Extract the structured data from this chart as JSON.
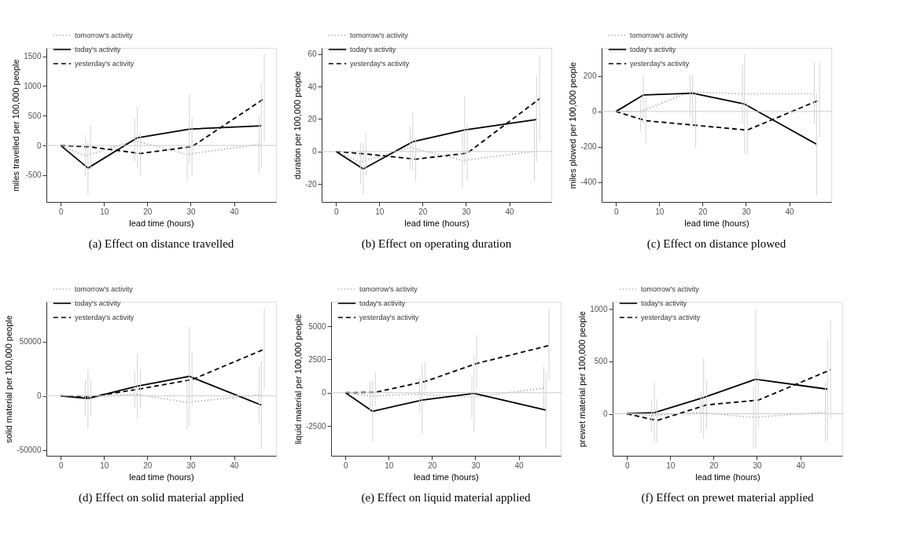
{
  "chart_data": [
    {
      "type": "line",
      "title": "(a)  Effect on distance travelled",
      "xlabel": "lead time (hours)",
      "ylabel": "miles travelled per 100,000 people",
      "xlim": [
        -3.3,
        49.7
      ],
      "ylim": [
        -950,
        1640
      ],
      "xticks": [
        0,
        10,
        20,
        30,
        40
      ],
      "yticks": [
        -500,
        0,
        500,
        1000,
        1500
      ],
      "grid": false,
      "legend": "top left",
      "ref_lines": [
        {
          "axis": "y",
          "value": 0,
          "color": "#cccccc"
        }
      ],
      "series": [
        {
          "name": "tomorrow's activity",
          "color": "#999999",
          "line_style": "dotted",
          "x": [
            0,
            5.7,
            17.1,
            29.2,
            45.8
          ],
          "values": [
            0,
            -175,
            80,
            -150,
            20
          ],
          "errors": [
            null,
            [
              -525,
              170
            ],
            [
              -270,
              455
            ],
            [
              -610,
              10
            ],
            [
              -470,
              500
            ]
          ]
        },
        {
          "name": "today's activity",
          "color": "#000000",
          "line_style": "solid",
          "x": [
            0,
            6.3,
            17.7,
            29.7,
            46.3
          ],
          "values": [
            0,
            -380,
            130,
            275,
            330
          ],
          "errors": [
            null,
            [
              -830,
              70
            ],
            [
              -385,
              650
            ],
            [
              -310,
              860
            ],
            [
              -380,
              1060
            ]
          ]
        },
        {
          "name": "yesterday's activity",
          "color": "#000000",
          "line_style": "dashed",
          "x": [
            0,
            6.9,
            18.4,
            30.3,
            47
          ],
          "values": [
            0,
            -25,
            -135,
            -20,
            790
          ],
          "errors": [
            null,
            [
              -405,
              345
            ],
            [
              -515,
              225
            ],
            [
              -505,
              485
            ],
            [
              60,
              1530
            ]
          ]
        }
      ]
    },
    {
      "type": "line",
      "title": "(b)  Effect on operating duration",
      "xlabel": "lead time (hours)",
      "ylabel": "duration per 100,000 people",
      "xlim": [
        -3.3,
        49.7
      ],
      "ylim": [
        -31,
        63.7
      ],
      "xticks": [
        0,
        10,
        20,
        30,
        40
      ],
      "yticks": [
        -20,
        0,
        20,
        40,
        60
      ],
      "grid": false,
      "legend": "top left",
      "ref_lines": [
        {
          "axis": "y",
          "value": 0,
          "color": "#cccccc"
        }
      ],
      "series": [
        {
          "name": "tomorrow's activity",
          "color": "#999999",
          "line_style": "dotted",
          "x": [
            0,
            5.7,
            17.1,
            29.2,
            45.8
          ],
          "values": [
            0,
            -6.5,
            2.5,
            -5.5,
            0
          ],
          "errors": [
            null,
            [
              -20,
              5.3
            ],
            [
              -10.9,
              15.7
            ],
            [
              -22.5,
              11.7
            ],
            [
              -18.3,
              17.7
            ]
          ]
        },
        {
          "name": "today's activity",
          "color": "#000000",
          "line_style": "solid",
          "x": [
            0,
            6.3,
            17.7,
            29.7,
            46.3
          ],
          "values": [
            0,
            -10.7,
            6,
            13.3,
            19.7
          ],
          "errors": [
            null,
            [
              -26.7,
              5.1
            ],
            [
              -11.6,
              23.5
            ],
            [
              -8.3,
              34.1
            ],
            [
              -6.7,
              46.4
            ]
          ]
        },
        {
          "name": "yesterday's activity",
          "color": "#000000",
          "line_style": "dashed",
          "x": [
            0,
            6.9,
            18.4,
            30.3,
            47
          ],
          "values": [
            0,
            -1.5,
            -4.7,
            -1,
            32.5
          ],
          "errors": [
            null,
            [
              -14.9,
              11.7
            ],
            [
              -17.9,
              8.4
            ],
            [
              -17.9,
              16.8
            ],
            [
              6,
              59.1
            ]
          ]
        }
      ]
    },
    {
      "type": "line",
      "title": "(c)  Effect on distance plowed",
      "xlabel": "lead time (hours)",
      "ylabel": "miles plowed per 100,000 people",
      "xlim": [
        -3.3,
        49.7
      ],
      "ylim": [
        -511,
        359
      ],
      "xticks": [
        0,
        10,
        20,
        30,
        40
      ],
      "yticks": [
        -400,
        -200,
        0,
        200
      ],
      "grid": false,
      "legend": "top left",
      "ref_lines": [
        {
          "axis": "y",
          "value": 0,
          "color": "#cccccc"
        }
      ],
      "series": [
        {
          "name": "tomorrow's activity",
          "color": "#999999",
          "line_style": "dotted",
          "x": [
            0,
            5.7,
            17.1,
            29.2,
            45.8
          ],
          "values": [
            0,
            0,
            110,
            100,
            100
          ],
          "errors": [
            null,
            [
              -114,
              63
            ],
            [
              -32,
              205
            ],
            [
              -69,
              269
            ],
            [
              -73,
              277
            ]
          ]
        },
        {
          "name": "today's activity",
          "color": "#000000",
          "line_style": "solid",
          "x": [
            0,
            6.3,
            17.7,
            29.7,
            46.3
          ],
          "values": [
            0,
            93,
            103,
            42,
            -185
          ],
          "errors": [
            null,
            [
              -69,
              207
            ],
            [
              -89,
              207
            ],
            [
              -237,
              322
            ],
            [
              -472,
              98
            ]
          ]
        },
        {
          "name": "yesterday's activity",
          "color": "#000000",
          "line_style": "dashed",
          "x": [
            0,
            6.9,
            18.4,
            30.3,
            47
          ],
          "values": [
            0,
            -52,
            -78,
            -105,
            65
          ],
          "errors": [
            null,
            [
              -180,
              79
            ],
            [
              -202,
              100
            ],
            [
              -249,
              63
            ],
            [
              -143,
              279
            ]
          ]
        }
      ]
    },
    {
      "type": "line",
      "title": "(d)  Effect on solid material applied",
      "xlabel": "lead time (hours)",
      "ylabel": "solid material per 100,000 people",
      "xlim": [
        -3.3,
        49.7
      ],
      "ylim": [
        -55200,
        86700
      ],
      "xticks": [
        0,
        10,
        20,
        30,
        40
      ],
      "yticks": [
        -50000,
        0,
        50000
      ],
      "grid": false,
      "legend": "top left",
      "ref_lines": [
        {
          "axis": "y",
          "value": 0,
          "color": "#cccccc"
        }
      ],
      "series": [
        {
          "name": "tomorrow's activity",
          "color": "#999999",
          "line_style": "dotted",
          "x": [
            0,
            5.7,
            17.1,
            29.2,
            45.8
          ],
          "values": [
            0,
            -1500,
            1500,
            -6000,
            1000
          ],
          "errors": [
            null,
            [
              -18500,
              14700
            ],
            [
              -11500,
              22200
            ],
            [
              -31700,
              15700
            ],
            [
              -25600,
              26800
            ]
          ]
        },
        {
          "name": "today's activity",
          "color": "#000000",
          "line_style": "solid",
          "x": [
            0,
            6.3,
            17.7,
            29.7,
            46.3
          ],
          "values": [
            0,
            -2500,
            9000,
            18000,
            -8500
          ],
          "errors": [
            null,
            [
              -30200,
              24200
            ],
            [
              -21600,
              38900
            ],
            [
              -27600,
              64100
            ],
            [
              -49400,
              31900
            ]
          ]
        },
        {
          "name": "yesterday's activity",
          "color": "#000000",
          "line_style": "dashed",
          "x": [
            0,
            6.9,
            18.4,
            30.3,
            47
          ],
          "values": [
            0,
            -1000,
            6500,
            15000,
            43000
          ],
          "errors": [
            null,
            [
              -18500,
              15700
            ],
            [
              -11500,
              24200
            ],
            [
              -8500,
              40300
            ],
            [
              6000,
              80200
            ]
          ]
        }
      ]
    },
    {
      "type": "line",
      "title": "(e)  Effect on liquid material applied",
      "xlabel": "lead time (hours)",
      "ylabel": "liquid material per 100,000 people",
      "xlim": [
        -3.3,
        49.7
      ],
      "ylim": [
        -4740,
        6840
      ],
      "xticks": [
        0,
        10,
        20,
        30,
        40
      ],
      "yticks": [
        -2500,
        0,
        2500,
        5000
      ],
      "grid": false,
      "legend": "top left",
      "ref_lines": [
        {
          "axis": "y",
          "value": 0,
          "color": "#cccccc"
        }
      ],
      "series": [
        {
          "name": "tomorrow's activity",
          "color": "#999999",
          "line_style": "dotted",
          "x": [
            0,
            5.7,
            17.1,
            29.2,
            45.8
          ],
          "values": [
            0,
            -250,
            -100,
            -350,
            350
          ],
          "errors": [
            null,
            [
              -1500,
              860
            ],
            [
              -1410,
              1250
            ],
            [
              -1990,
              1130
            ],
            [
              -1220,
              1960
            ]
          ]
        },
        {
          "name": "today's activity",
          "color": "#000000",
          "line_style": "solid",
          "x": [
            0,
            6.3,
            17.7,
            29.7,
            46.3
          ],
          "values": [
            0,
            -1400,
            -550,
            -50,
            -1300
          ],
          "errors": [
            null,
            [
              -3680,
              890
            ],
            [
              -3140,
              2090
            ],
            [
              -2980,
              2860
            ],
            [
              -4210,
              1580
            ]
          ]
        },
        {
          "name": "yesterday's activity",
          "color": "#000000",
          "line_style": "dashed",
          "x": [
            0,
            6.9,
            18.4,
            30.3,
            47
          ],
          "values": [
            0,
            30,
            850,
            2200,
            3550
          ],
          "errors": [
            null,
            [
              -1000,
              1500
            ],
            [
              150,
              2240
            ],
            [
              230,
              4310
            ],
            [
              855,
              6320
            ]
          ]
        }
      ]
    },
    {
      "type": "line",
      "title": "(f)  Effect on prewet material applied",
      "xlabel": "lead time (hours)",
      "ylabel": "prewet material per 100,000 people",
      "xlim": [
        -3.3,
        49.7
      ],
      "ylim": [
        -402,
        1071
      ],
      "xticks": [
        0,
        10,
        20,
        30,
        40
      ],
      "yticks": [
        0,
        500,
        1000
      ],
      "grid": false,
      "legend": "top left",
      "ref_lines": [
        {
          "axis": "y",
          "value": 0,
          "color": "#cccccc"
        }
      ],
      "series": [
        {
          "name": "tomorrow's activity",
          "color": "#999999",
          "line_style": "dotted",
          "x": [
            0,
            5.7,
            17.1,
            29.2,
            45.8
          ],
          "values": [
            0,
            -15,
            10,
            -35,
            15
          ],
          "errors": [
            null,
            [
              -167,
              126
            ],
            [
              -184,
              205
            ],
            [
              -335,
              262
            ],
            [
              -268,
              303
            ]
          ]
        },
        {
          "name": "today's activity",
          "color": "#000000",
          "line_style": "solid",
          "x": [
            0,
            6.3,
            17.7,
            29.7,
            46.3
          ],
          "values": [
            0,
            10,
            155,
            330,
            235
          ],
          "errors": [
            null,
            [
              -282,
              297
            ],
            [
              -234,
              533
            ],
            [
              -339,
              1004
            ],
            [
              -251,
              722
            ]
          ]
        },
        {
          "name": "yesterday's activity",
          "color": "#000000",
          "line_style": "dashed",
          "x": [
            0,
            6.9,
            18.4,
            30.3,
            47
          ],
          "values": [
            0,
            -65,
            85,
            130,
            420
          ],
          "errors": [
            null,
            [
              -276,
              136
            ],
            [
              -142,
              314
            ],
            [
              -142,
              408
            ],
            [
              -42,
              889
            ]
          ]
        }
      ]
    }
  ]
}
